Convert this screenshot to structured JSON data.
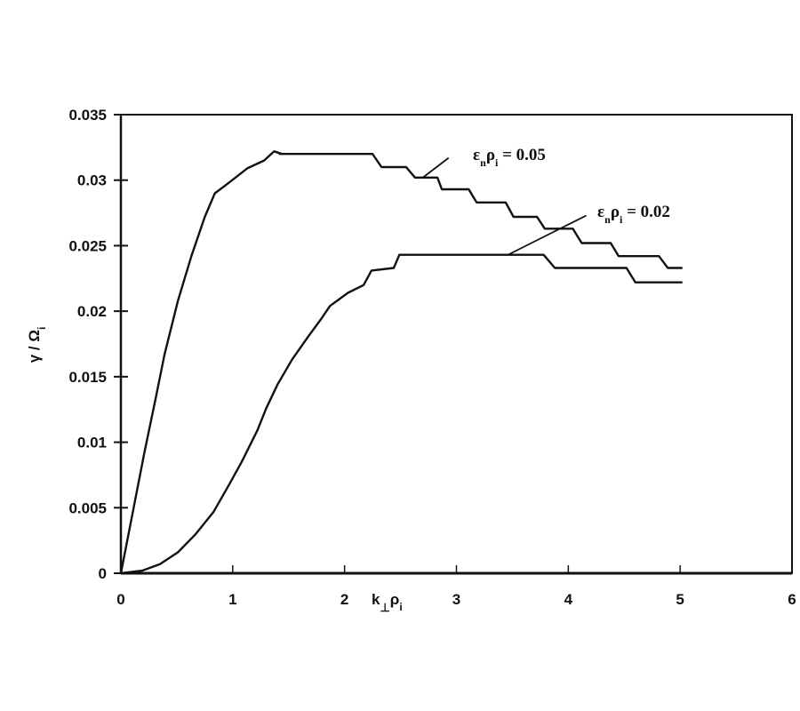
{
  "chart_data": {
    "type": "line",
    "title": "",
    "xlabel": "k⊥ρi",
    "ylabel": "γ / Ωi",
    "xlim": [
      0,
      6
    ],
    "ylim": [
      0,
      0.035
    ],
    "grid": false,
    "xticks": [
      0,
      1,
      2,
      3,
      4,
      5,
      6
    ],
    "xtick_labels": [
      "0",
      "1",
      "2",
      "3",
      "4",
      "5",
      "6"
    ],
    "yticks": [
      0,
      0.005,
      0.01,
      0.015,
      0.02,
      0.025,
      0.03,
      0.035
    ],
    "ytick_labels": [
      "0",
      "0.005",
      "0.01",
      "0.015",
      "0.02",
      "0.025",
      "0.03",
      "0.035"
    ],
    "series": [
      {
        "name": "εnρi = 0.05",
        "x": [
          0,
          0.11,
          0.21,
          0.31,
          0.39,
          0.51,
          0.63,
          0.75,
          0.84,
          0.98,
          1.13,
          1.28,
          1.37,
          1.44,
          1.42,
          1.51,
          2.25,
          2.33,
          2.55,
          2.63,
          2.83,
          2.87,
          3.11,
          3.18,
          3.44,
          3.51,
          3.72,
          3.79,
          4.04,
          4.12,
          4.38,
          4.45,
          4.81,
          4.89,
          5.02
        ],
        "values": [
          0,
          0.0048,
          0.0092,
          0.0133,
          0.0167,
          0.0208,
          0.0242,
          0.0272,
          0.029,
          0.0299,
          0.0309,
          0.0315,
          0.0322,
          0.032,
          0.032,
          0.032,
          0.032,
          0.031,
          0.031,
          0.0302,
          0.0302,
          0.0293,
          0.0293,
          0.0283,
          0.0283,
          0.0272,
          0.0272,
          0.0263,
          0.0263,
          0.0252,
          0.0252,
          0.0242,
          0.0242,
          0.0233,
          0.0233
        ]
      },
      {
        "name": "εnρi = 0.02",
        "x": [
          0,
          0.19,
          0.35,
          0.51,
          0.67,
          0.83,
          0.97,
          1.08,
          1.22,
          1.3,
          1.4,
          1.53,
          1.67,
          1.79,
          1.87,
          2.03,
          2.17,
          2.24,
          2.44,
          2.49,
          2.78,
          3.78,
          3.88,
          4.52,
          4.6,
          5.02
        ],
        "values": [
          0,
          0.0002,
          0.0007,
          0.0016,
          0.003,
          0.0047,
          0.0068,
          0.0085,
          0.0109,
          0.0126,
          0.0144,
          0.0163,
          0.018,
          0.0194,
          0.0204,
          0.0214,
          0.022,
          0.0231,
          0.0233,
          0.0243,
          0.0243,
          0.0243,
          0.0233,
          0.0233,
          0.0222,
          0.0222
        ]
      }
    ],
    "annotations": [
      {
        "text": "εnρi = 0.05",
        "pointer_from": [
          2.7,
          0.0302
        ],
        "pointer_to": [
          2.93,
          0.0317
        ]
      },
      {
        "text": "εnρi = 0.02",
        "pointer_from": [
          3.46,
          0.0243
        ],
        "pointer_to": [
          4.16,
          0.0273
        ]
      }
    ],
    "legend": null
  },
  "labels": {
    "ylabel_main": "γ / Ω",
    "ylabel_sub": "i",
    "xlabel_main": "k",
    "xlabel_perp": "⊥",
    "xlabel_rho": "ρ",
    "xlabel_sub": "i",
    "anno1": {
      "eps": "ε",
      "n": "n",
      "rho": "ρ",
      "i": "i",
      "rest": " = 0.05"
    },
    "anno2": {
      "eps": "ε",
      "n": "n",
      "rho": "ρ",
      "i": "i",
      "rest": " = 0.02"
    }
  }
}
